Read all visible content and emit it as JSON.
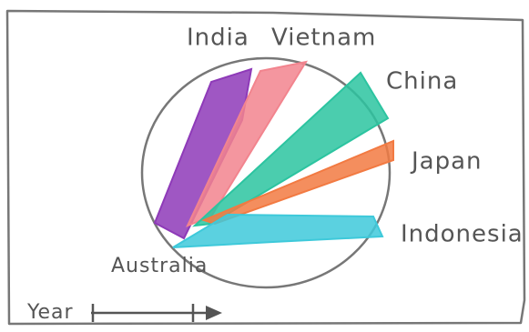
{
  "origin": {
    "label": "Australia"
  },
  "destinations": [
    {
      "label": "India",
      "color": "#8e3ab8"
    },
    {
      "label": "Vietnam",
      "color": "#f2848e"
    },
    {
      "label": "China",
      "color": "#2cc4a0"
    },
    {
      "label": "Japan",
      "color": "#f27a42"
    },
    {
      "label": "Indonesia",
      "color": "#3ec9da"
    }
  ],
  "slider": {
    "label": "Year"
  }
}
